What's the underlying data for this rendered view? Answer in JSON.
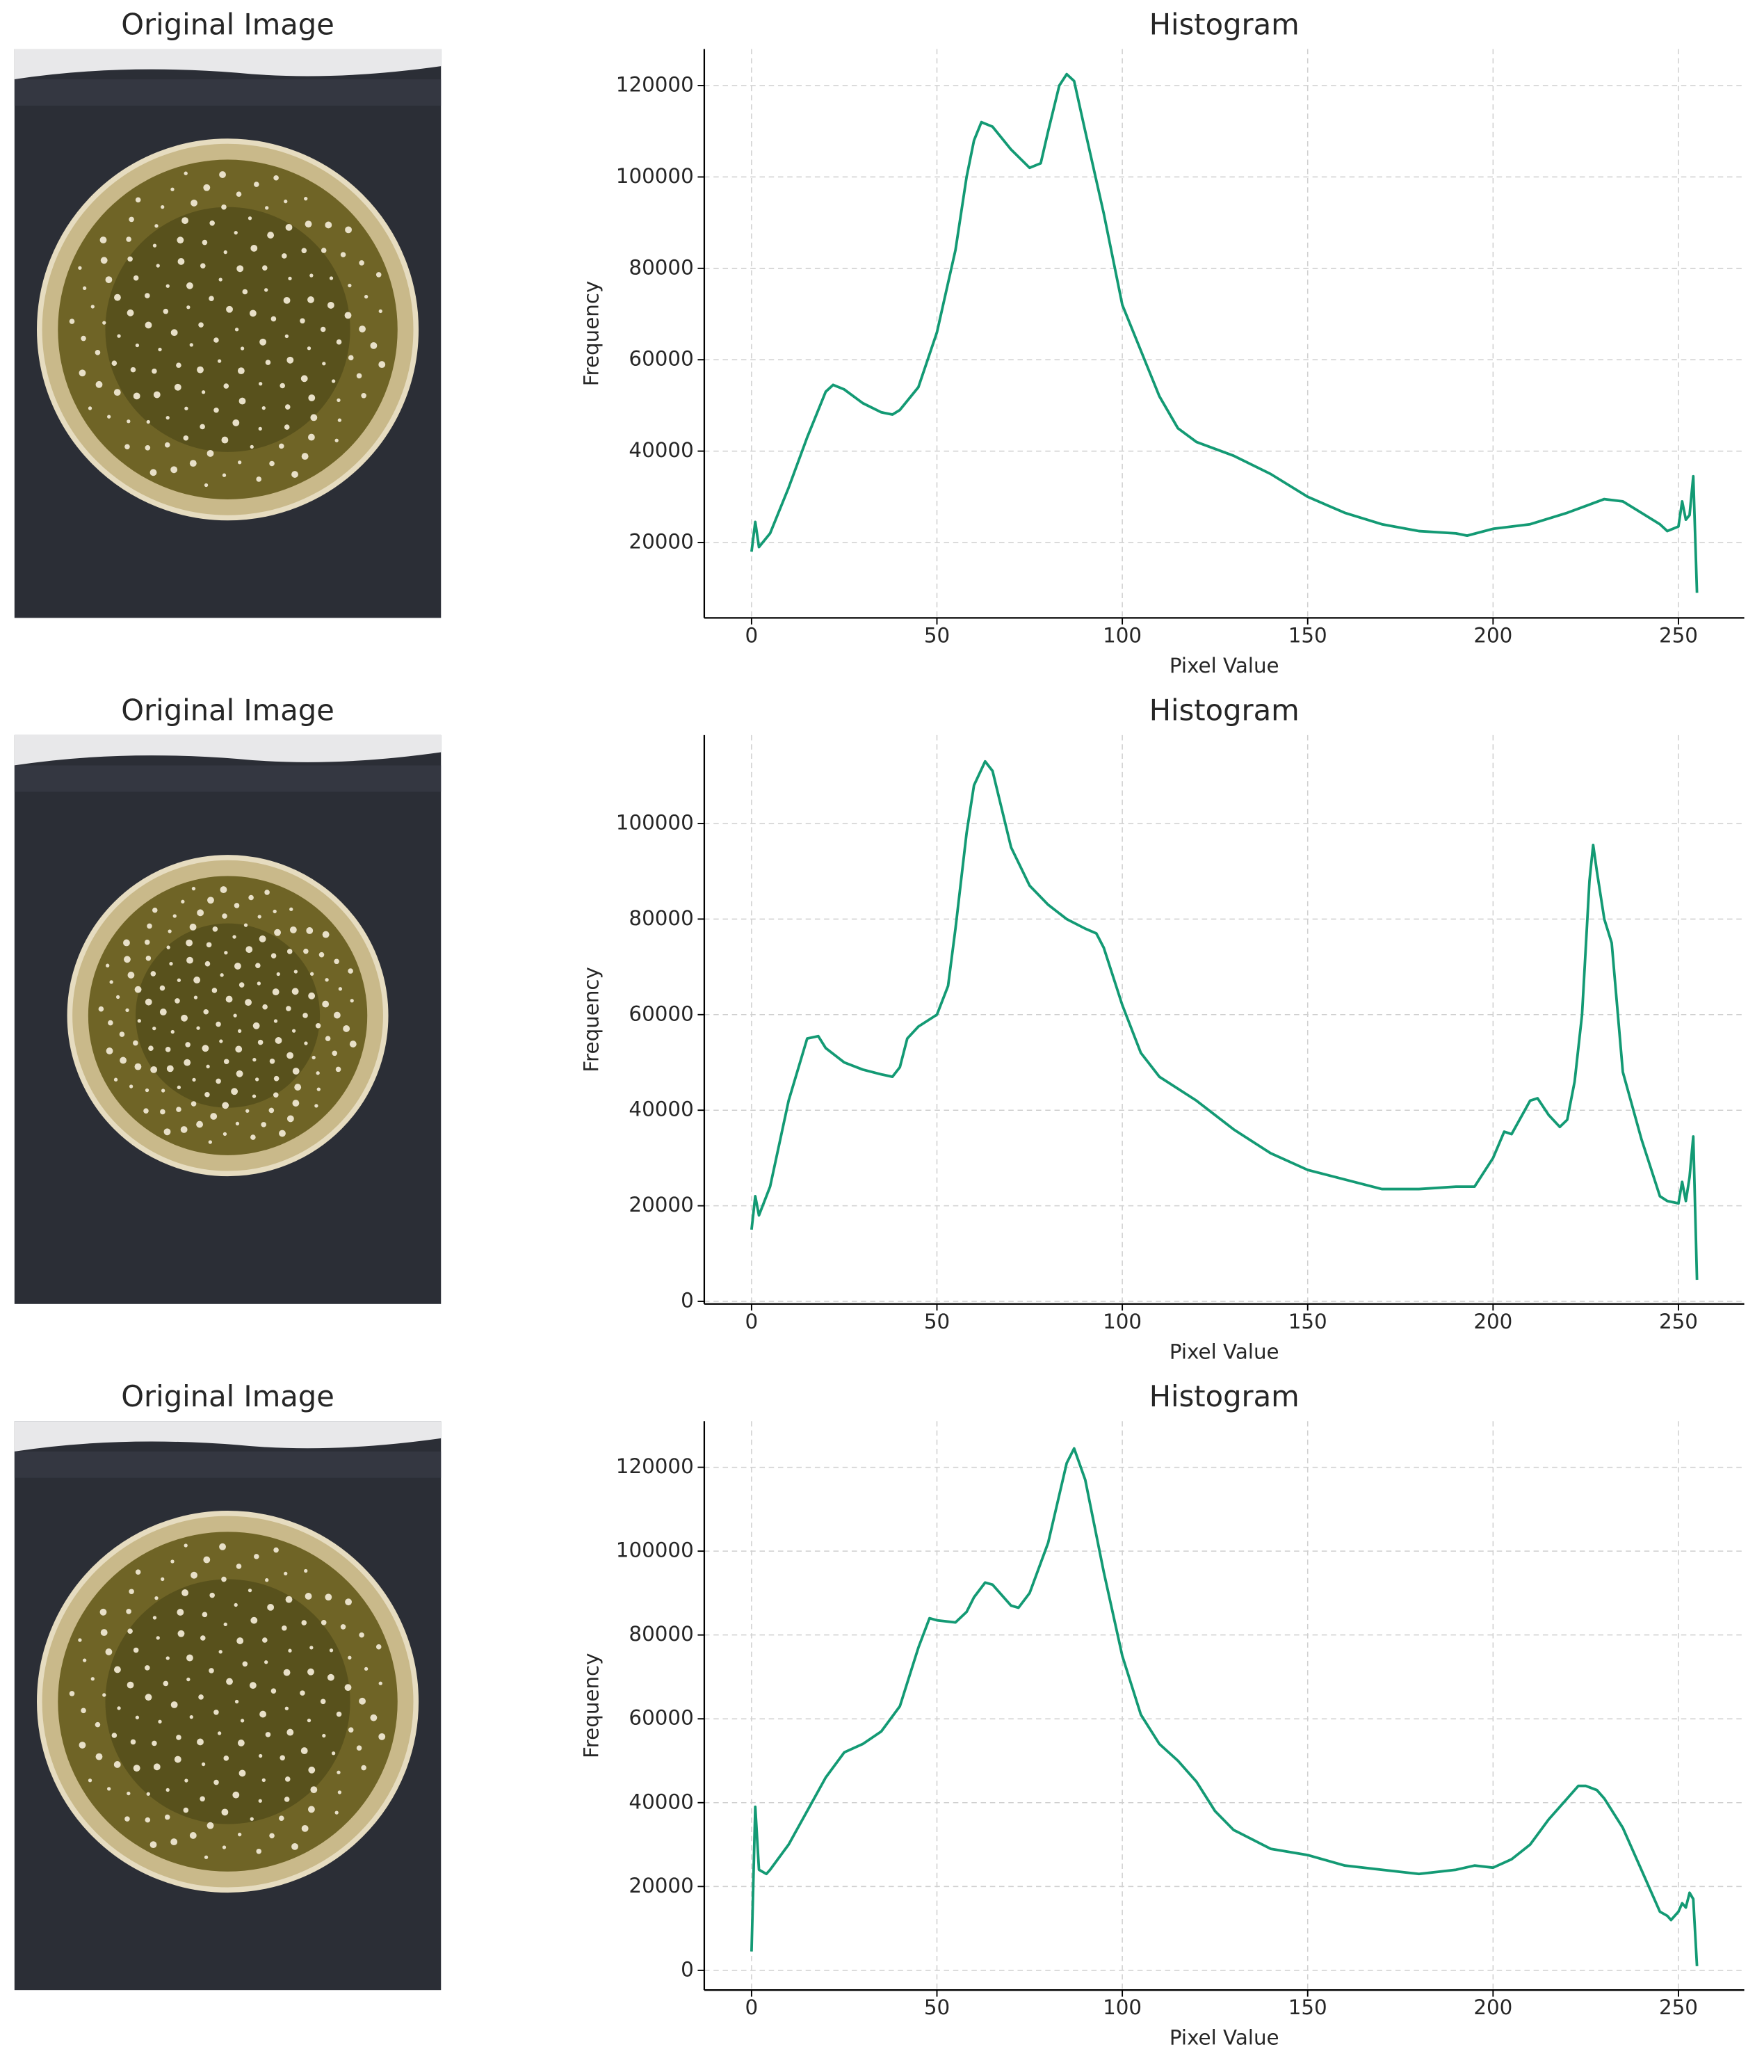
{
  "chart_data": [
    {
      "type": "image",
      "title": "Original Image"
    },
    {
      "type": "line",
      "title": "Histogram",
      "xlabel": "Pixel Value",
      "ylabel": "Frequency",
      "grid": true,
      "xlim": [
        -12.75,
        267.75
      ],
      "ylim": [
        3500,
        128000
      ],
      "xticks": [
        0,
        50,
        100,
        150,
        200,
        250
      ],
      "yticks": [
        20000,
        40000,
        60000,
        80000,
        100000,
        120000
      ],
      "x": [
        0,
        1,
        2,
        5,
        10,
        15,
        20,
        22,
        25,
        30,
        35,
        38,
        40,
        45,
        50,
        55,
        58,
        60,
        62,
        65,
        70,
        75,
        78,
        80,
        83,
        85,
        87,
        90,
        95,
        100,
        105,
        110,
        115,
        120,
        130,
        140,
        150,
        160,
        170,
        180,
        190,
        193,
        200,
        210,
        220,
        225,
        230,
        235,
        240,
        245,
        247,
        250,
        251,
        252,
        253,
        254,
        255
      ],
      "series": [
        {
          "color": "#139a74",
          "values": [
            18000,
            24500,
            19000,
            22000,
            32000,
            43000,
            53000,
            54500,
            53500,
            50500,
            48500,
            48000,
            49000,
            54000,
            66000,
            84000,
            100000,
            108000,
            112000,
            111000,
            106000,
            102000,
            103000,
            110000,
            120000,
            122500,
            121000,
            110000,
            92000,
            72000,
            62000,
            52000,
            45000,
            42000,
            39000,
            35000,
            30000,
            26500,
            24000,
            22500,
            22000,
            21500,
            23000,
            24000,
            26500,
            28000,
            29500,
            29000,
            26500,
            24000,
            22500,
            23500,
            29000,
            25000,
            26000,
            34500,
            9000
          ]
        }
      ]
    },
    {
      "type": "image",
      "title": "Original Image"
    },
    {
      "type": "line",
      "title": "Histogram",
      "xlabel": "Pixel Value",
      "ylabel": "Frequency",
      "grid": true,
      "xlim": [
        -12.75,
        267.75
      ],
      "ylim": [
        -550,
        118500
      ],
      "xticks": [
        0,
        50,
        100,
        150,
        200,
        250
      ],
      "yticks": [
        0,
        20000,
        40000,
        60000,
        80000,
        100000
      ],
      "x": [
        0,
        1,
        2,
        5,
        10,
        15,
        18,
        20,
        25,
        30,
        35,
        38,
        40,
        42,
        45,
        50,
        53,
        55,
        58,
        60,
        63,
        65,
        70,
        75,
        80,
        85,
        90,
        93,
        95,
        100,
        105,
        110,
        120,
        130,
        140,
        150,
        160,
        170,
        180,
        190,
        195,
        200,
        203,
        205,
        210,
        212,
        215,
        218,
        220,
        222,
        224,
        226,
        227,
        228,
        230,
        232,
        235,
        240,
        245,
        247,
        250,
        251,
        252,
        253,
        254,
        255
      ],
      "series": [
        {
          "color": "#139a74",
          "values": [
            15000,
            22000,
            18000,
            24000,
            42000,
            55000,
            55500,
            53000,
            50000,
            48500,
            47500,
            47000,
            49000,
            55000,
            57500,
            60000,
            66000,
            78000,
            98000,
            108000,
            113000,
            111000,
            95000,
            87000,
            83000,
            80000,
            78000,
            77000,
            74000,
            62000,
            52000,
            47000,
            42000,
            36000,
            31000,
            27500,
            25500,
            23500,
            23500,
            24000,
            24000,
            30000,
            35500,
            35000,
            42000,
            42500,
            39000,
            36500,
            38000,
            46000,
            60000,
            88000,
            95500,
            90000,
            80000,
            75000,
            48000,
            34000,
            22000,
            21000,
            20500,
            25000,
            21000,
            26000,
            34500,
            4500
          ]
        }
      ]
    },
    {
      "type": "image",
      "title": "Original Image"
    },
    {
      "type": "line",
      "title": "Histogram",
      "xlabel": "Pixel Value",
      "ylabel": "Frequency",
      "grid": true,
      "xlim": [
        -12.75,
        267.75
      ],
      "ylim": [
        -4700,
        131000
      ],
      "xticks": [
        0,
        50,
        100,
        150,
        200,
        250
      ],
      "yticks": [
        0,
        20000,
        40000,
        60000,
        80000,
        100000,
        120000
      ],
      "x": [
        0,
        1,
        2,
        4,
        5,
        10,
        15,
        20,
        25,
        30,
        35,
        40,
        45,
        48,
        50,
        55,
        58,
        60,
        63,
        65,
        70,
        72,
        75,
        80,
        85,
        87,
        90,
        95,
        100,
        105,
        110,
        115,
        120,
        125,
        130,
        140,
        150,
        160,
        170,
        180,
        190,
        195,
        200,
        205,
        210,
        215,
        220,
        223,
        225,
        228,
        230,
        235,
        240,
        245,
        247,
        248,
        250,
        251,
        252,
        253,
        254,
        255
      ],
      "series": [
        {
          "color": "#139a74",
          "values": [
            4500,
            39000,
            24000,
            23000,
            24000,
            30000,
            38000,
            46000,
            52000,
            54000,
            57000,
            63000,
            77000,
            84000,
            83500,
            83000,
            85500,
            89000,
            92500,
            92000,
            87000,
            86500,
            90000,
            102000,
            121000,
            124500,
            117000,
            95000,
            75000,
            61000,
            54000,
            50000,
            45000,
            38000,
            33500,
            29000,
            27500,
            25000,
            24000,
            23000,
            24000,
            25000,
            24500,
            26500,
            30000,
            36000,
            41000,
            44000,
            44000,
            43000,
            41000,
            34000,
            24000,
            14000,
            13000,
            12000,
            14000,
            16000,
            15000,
            18500,
            17000,
            1000
          ]
        }
      ]
    }
  ]
}
